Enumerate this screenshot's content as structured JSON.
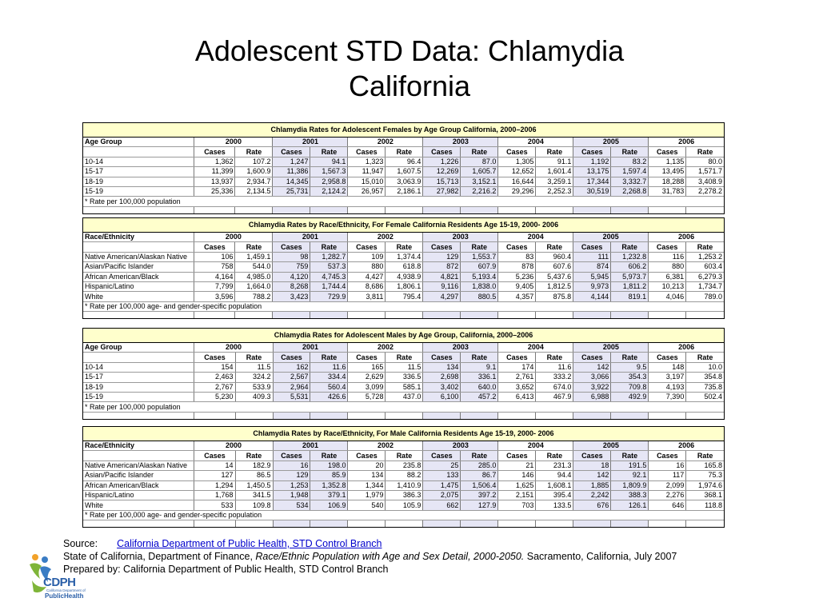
{
  "title_line1": "Adolescent STD Data: Chlamydia",
  "title_line2": "California",
  "years": [
    "2000",
    "2001",
    "2002",
    "2003",
    "2004",
    "2005",
    "2006"
  ],
  "sub_cases": "Cases",
  "sub_rate": "Rate",
  "tables": [
    {
      "title": "Chlamydia Rates for Adolescent Females by Age Group California, 2000–2006",
      "label": "Age Group",
      "footnote": "* Rate per 100,000 population",
      "rows": [
        {
          "label": "10-14",
          "values": [
            "1,362",
            "107.2",
            "1,247",
            "94.1",
            "1,323",
            "96.4",
            "1,226",
            "87.0",
            "1,305",
            "91.1",
            "1,192",
            "83.2",
            "1,135",
            "80.0"
          ]
        },
        {
          "label": "15-17",
          "values": [
            "11,399",
            "1,600.9",
            "11,386",
            "1,567.3",
            "11,947",
            "1,607.5",
            "12,269",
            "1,605.7",
            "12,652",
            "1,601.4",
            "13,175",
            "1,597.4",
            "13,495",
            "1,571.7"
          ]
        },
        {
          "label": "18-19",
          "values": [
            "13,937",
            "2,934.7",
            "14,345",
            "2,958.8",
            "15,010",
            "3,063.9",
            "15,713",
            "3,152.1",
            "16,644",
            "3,259.1",
            "17,344",
            "3,332.7",
            "18,288",
            "3,408.9"
          ]
        },
        {
          "label": "15-19",
          "values": [
            "25,336",
            "2,134.5",
            "25,731",
            "2,124.2",
            "26,957",
            "2,186.1",
            "27,982",
            "2,216.2",
            "29,296",
            "2,252.3",
            "30,519",
            "2,268.8",
            "31,783",
            "2,278.2"
          ]
        }
      ]
    },
    {
      "title": "Chlamydia Rates by Race/Ethnicity, For Female California Residents Age 15-19, 2000- 2006",
      "label": "Race/Ethnicity",
      "footnote": "* Rate per 100,000 age- and gender-specific population",
      "rows": [
        {
          "label": "Native American/Alaskan Native",
          "values": [
            "106",
            "1,459.1",
            "98",
            "1,282.7",
            "109",
            "1,374.4",
            "129",
            "1,553.7",
            "83",
            "960.4",
            "111",
            "1,232.8",
            "116",
            "1,253.2"
          ]
        },
        {
          "label": "Asian/Pacific Islander",
          "values": [
            "758",
            "544.0",
            "759",
            "537.3",
            "880",
            "618.8",
            "872",
            "607.9",
            "878",
            "607.6",
            "874",
            "606.2",
            "880",
            "603.4"
          ]
        },
        {
          "label": "African American/Black",
          "values": [
            "4,164",
            "4,985.0",
            "4,120",
            "4,745.3",
            "4,427",
            "4,938.9",
            "4,821",
            "5,193.4",
            "5,236",
            "5,437.6",
            "5,945",
            "5,973.7",
            "6,381",
            "6,279.3"
          ]
        },
        {
          "label": "Hispanic/Latino",
          "values": [
            "7,799",
            "1,664.0",
            "8,268",
            "1,744.4",
            "8,686",
            "1,806.1",
            "9,116",
            "1,838.0",
            "9,405",
            "1,812.5",
            "9,973",
            "1,811.2",
            "10,213",
            "1,734.7"
          ]
        },
        {
          "label": "White",
          "values": [
            "3,596",
            "788.2",
            "3,423",
            "729.9",
            "3,811",
            "795.4",
            "4,297",
            "880.5",
            "4,357",
            "875.8",
            "4,144",
            "819.1",
            "4,046",
            "789.0"
          ]
        }
      ]
    },
    {
      "title": "Chlamydia Rates for Adolescent Males by Age Group, California, 2000–2006",
      "label": "Age Group",
      "footnote": "* Rate per 100,000 population",
      "rows": [
        {
          "label": "10-14",
          "values": [
            "154",
            "11.5",
            "162",
            "11.6",
            "165",
            "11.5",
            "134",
            "9.1",
            "174",
            "11.6",
            "142",
            "9.5",
            "148",
            "10.0"
          ]
        },
        {
          "label": "15-17",
          "values": [
            "2,463",
            "324.2",
            "2,567",
            "334.4",
            "2,629",
            "336.5",
            "2,698",
            "336.1",
            "2,761",
            "333.2",
            "3,066",
            "354.3",
            "3,197",
            "354.8"
          ]
        },
        {
          "label": "18-19",
          "values": [
            "2,767",
            "533.9",
            "2,964",
            "560.4",
            "3,099",
            "585.1",
            "3,402",
            "640.0",
            "3,652",
            "674.0",
            "3,922",
            "709.8",
            "4,193",
            "735.8"
          ]
        },
        {
          "label": "15-19",
          "values": [
            "5,230",
            "409.3",
            "5,531",
            "426.6",
            "5,728",
            "437.0",
            "6,100",
            "457.2",
            "6,413",
            "467.9",
            "6,988",
            "492.9",
            "7,390",
            "502.4"
          ]
        }
      ]
    },
    {
      "title": "Chlamydia Rates by Race/Ethnicity, For Male California Residents Age 15-19, 2000- 2006",
      "label": "Race/Ethnicity",
      "footnote": "* Rate per 100,000 age- and gender-specific population",
      "rows": [
        {
          "label": "Native American/Alaskan Native",
          "values": [
            "14",
            "182.9",
            "16",
            "198.0",
            "20",
            "235.8",
            "25",
            "285.0",
            "21",
            "231.3",
            "18",
            "191.5",
            "16",
            "165.8"
          ]
        },
        {
          "label": "Asian/Pacific Islander",
          "values": [
            "127",
            "86.5",
            "129",
            "85.9",
            "134",
            "88.2",
            "133",
            "86.7",
            "146",
            "94.4",
            "142",
            "92.1",
            "117",
            "75.3"
          ]
        },
        {
          "label": "African American/Black",
          "values": [
            "1,294",
            "1,450.5",
            "1,253",
            "1,352.8",
            "1,344",
            "1,410.9",
            "1,475",
            "1,506.4",
            "1,625",
            "1,608.1",
            "1,885",
            "1,809.9",
            "2,099",
            "1,974.6"
          ]
        },
        {
          "label": "Hispanic/Latino",
          "values": [
            "1,768",
            "341.5",
            "1,948",
            "379.1",
            "1,979",
            "386.3",
            "2,075",
            "397.2",
            "2,151",
            "395.4",
            "2,242",
            "388.3",
            "2,276",
            "368.1"
          ]
        },
        {
          "label": "White",
          "values": [
            "533",
            "109.8",
            "534",
            "106.9",
            "540",
            "105.9",
            "662",
            "127.9",
            "703",
            "133.5",
            "676",
            "126.1",
            "646",
            "118.8"
          ]
        }
      ]
    }
  ],
  "source": {
    "label": "Source:",
    "link_text": "California Department of Public Health, STD Control Branch",
    "line2_prefix": "State of California, Department of Finance, ",
    "line2_italic": "Race/Ethnic Population with Age and Sex Detail, 2000-2050.",
    "line2_suffix": "  Sacramento, California, July 2007",
    "line3": "Prepared by:  California Department of Public Health, STD Control Branch"
  },
  "logo": {
    "letters": "CDPH",
    "sub": "California Department of",
    "name": "PublicHealth"
  }
}
